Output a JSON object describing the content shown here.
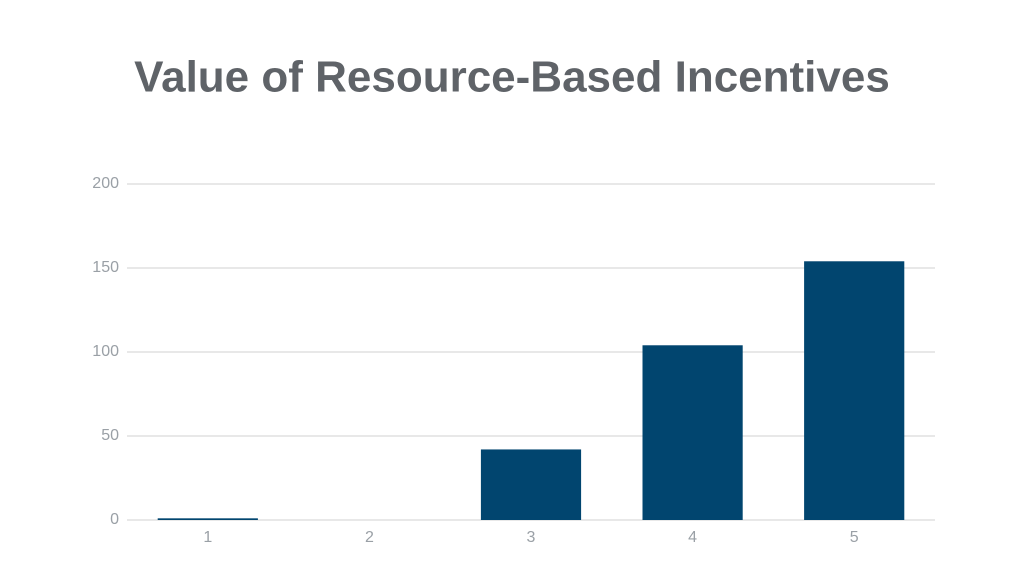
{
  "chart_data": {
    "type": "bar",
    "title": "Value of Resource-Based Incentives",
    "categories": [
      "1",
      "2",
      "3",
      "4",
      "5"
    ],
    "values": [
      1,
      0,
      42,
      104,
      154
    ],
    "color": "#01456f",
    "ylim": [
      0,
      200
    ],
    "yticks": [
      0,
      50,
      100,
      150,
      200
    ],
    "grid": true
  }
}
